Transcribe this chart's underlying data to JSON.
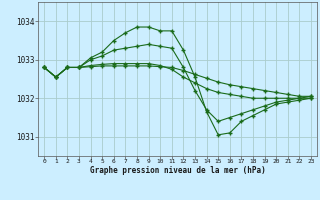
{
  "background_color": "#cceeff",
  "grid_color": "#aacccc",
  "line_color": "#1a6b1a",
  "xlabel": "Graphe pression niveau de la mer (hPa)",
  "xlim": [
    -0.5,
    23.5
  ],
  "ylim": [
    1030.5,
    1034.5
  ],
  "yticks": [
    1031,
    1032,
    1033,
    1034
  ],
  "xticks": [
    0,
    1,
    2,
    3,
    4,
    5,
    6,
    7,
    8,
    9,
    10,
    11,
    12,
    13,
    14,
    15,
    16,
    17,
    18,
    19,
    20,
    21,
    22,
    23
  ],
  "series": [
    [
      1032.8,
      1032.55,
      1032.8,
      1032.8,
      1033.05,
      1033.2,
      1033.5,
      1033.7,
      1033.85,
      1033.85,
      1033.75,
      1033.75,
      1033.25,
      1032.55,
      1031.65,
      1031.05,
      1031.1,
      1031.4,
      1031.55,
      1031.7,
      1031.85,
      1031.9,
      1031.95,
      1032.0
    ],
    [
      1032.8,
      1032.55,
      1032.8,
      1032.8,
      1033.0,
      1033.1,
      1033.25,
      1033.3,
      1033.35,
      1033.4,
      1033.35,
      1033.3,
      1032.8,
      1032.2,
      1031.7,
      1031.4,
      1031.5,
      1031.6,
      1031.7,
      1031.8,
      1031.9,
      1031.95,
      1032.0,
      1032.0
    ],
    [
      1032.8,
      1032.55,
      1032.8,
      1032.8,
      1032.85,
      1032.88,
      1032.9,
      1032.9,
      1032.9,
      1032.9,
      1032.85,
      1032.75,
      1032.55,
      1032.4,
      1032.25,
      1032.15,
      1032.1,
      1032.05,
      1032.0,
      1032.0,
      1032.0,
      1032.0,
      1032.0,
      1032.05
    ],
    [
      1032.8,
      1032.55,
      1032.8,
      1032.8,
      1032.82,
      1032.84,
      1032.84,
      1032.84,
      1032.84,
      1032.84,
      1032.82,
      1032.8,
      1032.72,
      1032.62,
      1032.52,
      1032.42,
      1032.35,
      1032.3,
      1032.25,
      1032.2,
      1032.15,
      1032.1,
      1032.05,
      1032.05
    ]
  ]
}
